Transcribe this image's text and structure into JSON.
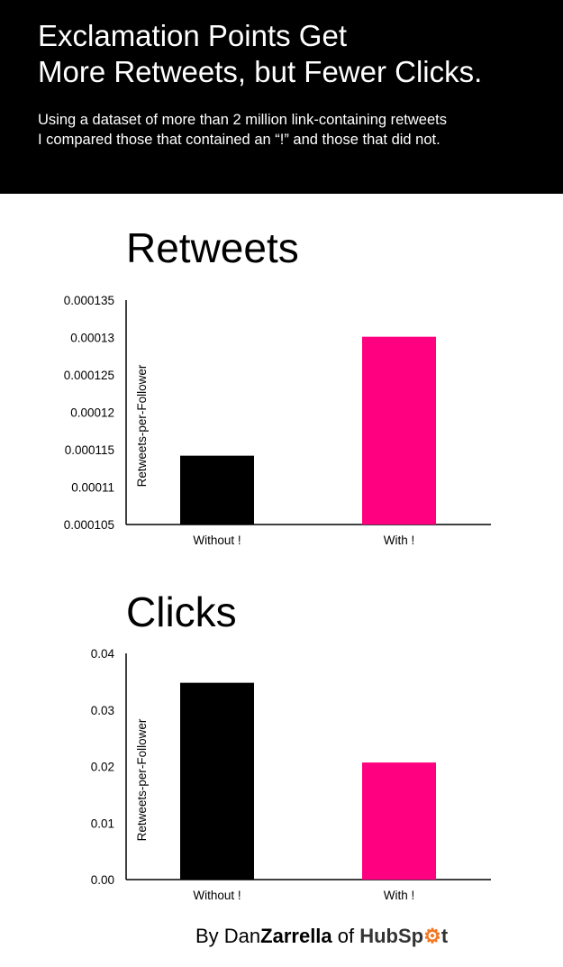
{
  "header": {
    "title_line1": "Exclamation Points Get",
    "title_line2": "More Retweets, but Fewer Clicks.",
    "subtitle_line1": "Using a dataset of more than 2 million link-containing retweets",
    "subtitle_line2": "I compared those that contained an “!” and those that did not."
  },
  "colors": {
    "without": "#000000",
    "with": "#ff0080",
    "header_bg": "#000000",
    "hubspot_orange": "#f57722"
  },
  "chart_data": [
    {
      "type": "bar",
      "title": "Retweets",
      "ylabel": "Retweets-per-Follower",
      "xlabel": "",
      "categories": [
        "Without !",
        "With !"
      ],
      "values": [
        0.0001142,
        0.0001301
      ],
      "ylim": [
        0.000105,
        0.000135
      ],
      "yticks": [
        "0.000135",
        "0.00013",
        "0.000125",
        "0.00012",
        "0.000115",
        "0.00011",
        "0.000105"
      ],
      "ytick_values": [
        0.000135,
        0.00013,
        0.000125,
        0.00012,
        0.000115,
        0.00011,
        0.000105
      ],
      "grid": false
    },
    {
      "type": "bar",
      "title": "Clicks",
      "ylabel": "Retweets-per-Follower",
      "xlabel": "",
      "categories": [
        "Without !",
        "With !"
      ],
      "values": [
        0.0348,
        0.0207
      ],
      "ylim": [
        0,
        0.04
      ],
      "yticks": [
        "0.04",
        "0.03",
        "0.02",
        "0.01",
        "0.00"
      ],
      "ytick_values": [
        0.04,
        0.03,
        0.02,
        0.01,
        0
      ],
      "grid": false
    }
  ],
  "footer": {
    "by": "By Dan",
    "name": "Zarrella",
    "of": " of ",
    "logo_text": "HubSpot"
  }
}
